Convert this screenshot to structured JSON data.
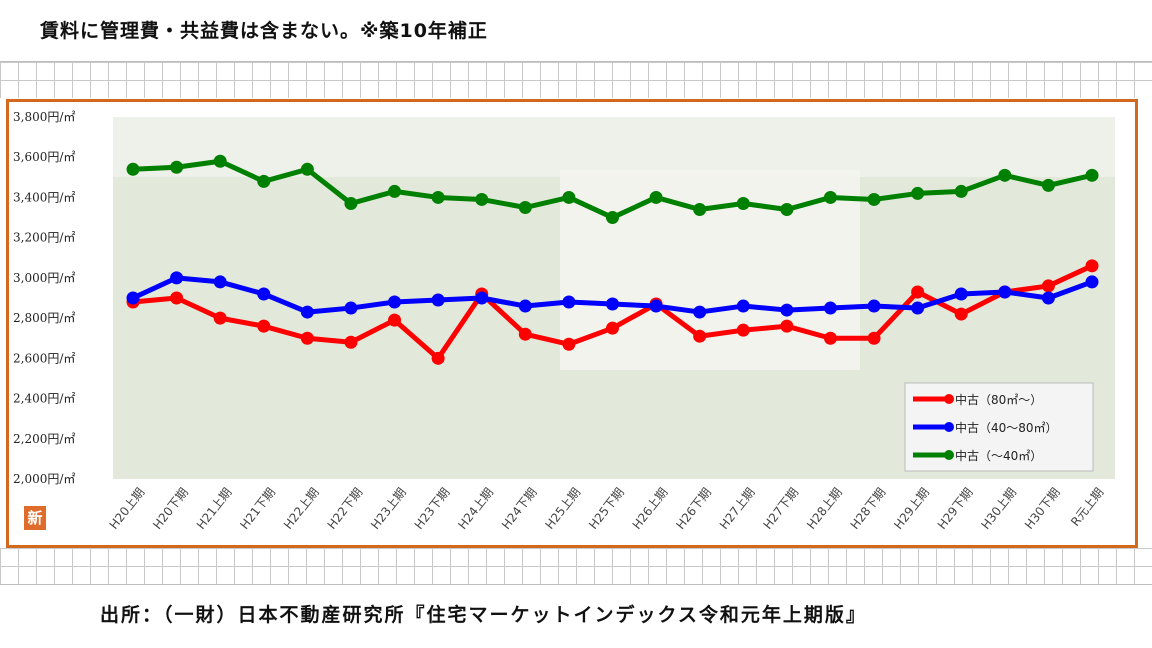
{
  "note": "賃料に管理費・共益費は含まない。※築10年補正",
  "source": "出所：（一財）日本不動産研究所『住宅マーケットインデックス令和元年上期版』",
  "badge": "新",
  "chart_data": {
    "type": "line",
    "categories": [
      "H20上期",
      "H20下期",
      "H21上期",
      "H21下期",
      "H22上期",
      "H22下期",
      "H23上期",
      "H23下期",
      "H24上期",
      "H24下期",
      "H25上期",
      "H25下期",
      "H26上期",
      "H26下期",
      "H27上期",
      "H27下期",
      "H28上期",
      "H28下期",
      "H29上期",
      "H29下期",
      "H30上期",
      "H30下期",
      "R元上期"
    ],
    "y_ticks": [
      "3,800円/㎡",
      "3,600円/㎡",
      "3,400円/㎡",
      "3,200円/㎡",
      "3,000円/㎡",
      "2,800円/㎡",
      "2,600円/㎡",
      "2,400円/㎡",
      "2,200円/㎡",
      "2,000円/㎡"
    ],
    "ylim": [
      2000,
      3800
    ],
    "legend_position": "bottom-right",
    "grid": false,
    "series": [
      {
        "name": "中古（80㎡～）",
        "color": "#ff0000",
        "values": [
          2880,
          2900,
          2800,
          2760,
          2700,
          2680,
          2790,
          2600,
          2920,
          2720,
          2670,
          2750,
          2870,
          2710,
          2740,
          2760,
          2700,
          2700,
          2930,
          2820,
          2930,
          2960,
          3060
        ]
      },
      {
        "name": "中古（40～80㎡）",
        "color": "#0000ff",
        "values": [
          2900,
          3000,
          2980,
          2920,
          2830,
          2850,
          2880,
          2890,
          2900,
          2860,
          2880,
          2870,
          2860,
          2830,
          2860,
          2840,
          2850,
          2860,
          2850,
          2920,
          2930,
          2900,
          2980
        ]
      },
      {
        "name": "中古（～40㎡）",
        "color": "#008000",
        "values": [
          3540,
          3550,
          3580,
          3480,
          3540,
          3370,
          3430,
          3400,
          3390,
          3350,
          3400,
          3300,
          3400,
          3340,
          3370,
          3340,
          3400,
          3390,
          3420,
          3430,
          3510,
          3460,
          3510
        ]
      }
    ]
  }
}
